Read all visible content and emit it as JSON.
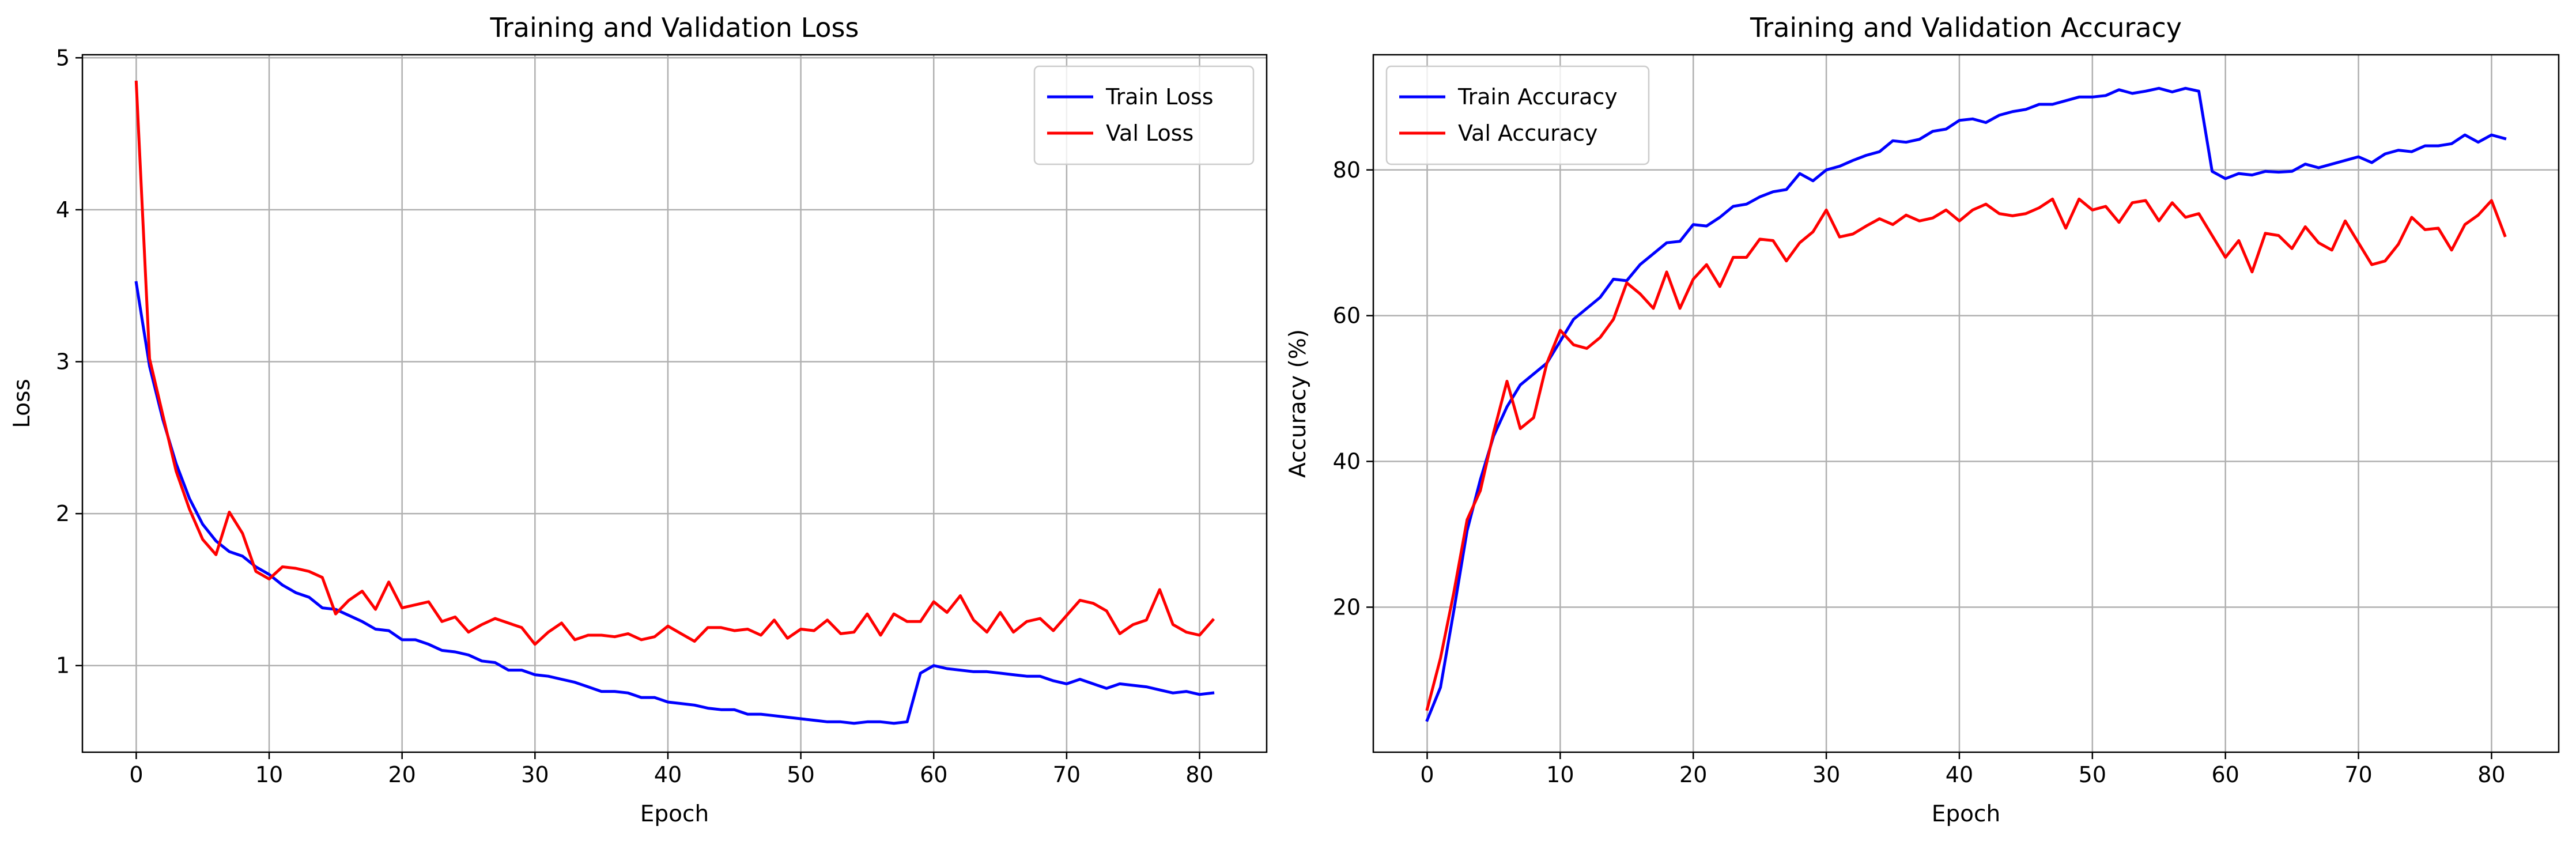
{
  "chart_data": [
    {
      "type": "line",
      "title": "Training and Validation Loss",
      "xlabel": "Epoch",
      "ylabel": "Loss",
      "xlim": [
        -4.05,
        85.05
      ],
      "ylim": [
        0.43,
        5.02
      ],
      "xticks": [
        0,
        10,
        20,
        30,
        40,
        50,
        60,
        70,
        80
      ],
      "yticks": [
        1,
        2,
        3,
        4,
        5
      ],
      "grid": true,
      "legend": "top-right",
      "series": [
        {
          "name": "Train Loss",
          "color": "#0000ff",
          "values": [
            3.52,
            2.97,
            2.62,
            2.33,
            2.1,
            1.93,
            1.82,
            1.75,
            1.72,
            1.65,
            1.6,
            1.53,
            1.48,
            1.45,
            1.38,
            1.37,
            1.33,
            1.29,
            1.24,
            1.23,
            1.17,
            1.17,
            1.14,
            1.1,
            1.09,
            1.07,
            1.03,
            1.02,
            0.97,
            0.97,
            0.94,
            0.93,
            0.91,
            0.89,
            0.86,
            0.83,
            0.83,
            0.82,
            0.79,
            0.79,
            0.76,
            0.75,
            0.74,
            0.72,
            0.71,
            0.71,
            0.68,
            0.68,
            0.67,
            0.66,
            0.65,
            0.64,
            0.63,
            0.63,
            0.62,
            0.63,
            0.63,
            0.62,
            0.63,
            0.95,
            1.0,
            0.98,
            0.97,
            0.96,
            0.96,
            0.95,
            0.94,
            0.93,
            0.93,
            0.9,
            0.88,
            0.91,
            0.88,
            0.85,
            0.88,
            0.87,
            0.86,
            0.84,
            0.82,
            0.83,
            0.81,
            0.82
          ]
        },
        {
          "name": "Val Loss",
          "color": "#ff0000",
          "values": [
            4.84,
            3.02,
            2.65,
            2.28,
            2.03,
            1.83,
            1.73,
            2.01,
            1.87,
            1.62,
            1.57,
            1.65,
            1.64,
            1.62,
            1.58,
            1.34,
            1.43,
            1.49,
            1.37,
            1.55,
            1.38,
            1.4,
            1.42,
            1.29,
            1.32,
            1.22,
            1.27,
            1.31,
            1.28,
            1.25,
            1.14,
            1.22,
            1.28,
            1.17,
            1.2,
            1.2,
            1.19,
            1.21,
            1.17,
            1.19,
            1.26,
            1.21,
            1.16,
            1.25,
            1.25,
            1.23,
            1.24,
            1.2,
            1.3,
            1.18,
            1.24,
            1.23,
            1.3,
            1.21,
            1.22,
            1.34,
            1.2,
            1.34,
            1.29,
            1.29,
            1.42,
            1.35,
            1.46,
            1.3,
            1.22,
            1.35,
            1.22,
            1.29,
            1.31,
            1.23,
            1.33,
            1.43,
            1.41,
            1.36,
            1.21,
            1.27,
            1.3,
            1.5,
            1.27,
            1.22,
            1.2,
            1.3
          ]
        }
      ]
    },
    {
      "type": "line",
      "title": "Training and Validation Accuracy",
      "xlabel": "Epoch",
      "ylabel": "Accuracy (%)",
      "xlim": [
        -4.05,
        85.05
      ],
      "ylim": [
        0.1,
        95.8
      ],
      "xticks": [
        0,
        10,
        20,
        30,
        40,
        50,
        60,
        70,
        80
      ],
      "yticks": [
        20,
        40,
        60,
        80
      ],
      "grid": true,
      "legend": "top-left",
      "series": [
        {
          "name": "Train Accuracy",
          "color": "#0000ff",
          "values": [
            4.5,
            9.0,
            19.5,
            30.5,
            37.5,
            43.5,
            47.5,
            50.5,
            52.0,
            53.5,
            56.5,
            59.5,
            61.0,
            62.5,
            65.0,
            64.8,
            67.0,
            68.5,
            70.0,
            70.2,
            72.5,
            72.3,
            73.5,
            75.0,
            75.3,
            76.3,
            77.0,
            77.3,
            79.5,
            78.5,
            80.0,
            80.5,
            81.3,
            82.0,
            82.5,
            84.0,
            83.8,
            84.2,
            85.3,
            85.6,
            86.8,
            87.0,
            86.5,
            87.5,
            88.0,
            88.3,
            89.0,
            89.0,
            89.5,
            90.0,
            90.0,
            90.2,
            91.0,
            90.5,
            90.8,
            91.2,
            90.7,
            91.2,
            90.8,
            79.8,
            78.8,
            79.5,
            79.3,
            79.8,
            79.7,
            79.8,
            80.8,
            80.3,
            80.8,
            81.3,
            81.8,
            81.0,
            82.2,
            82.7,
            82.5,
            83.3,
            83.3,
            83.6,
            84.8,
            83.8,
            84.8,
            84.3
          ]
        },
        {
          "name": "Val Accuracy",
          "color": "#ff0000",
          "values": [
            6.0,
            13.0,
            22.0,
            32.0,
            36.0,
            44.0,
            51.0,
            44.5,
            46.0,
            53.5,
            58.0,
            56.0,
            55.5,
            57.0,
            59.5,
            64.5,
            63.0,
            61.0,
            66.0,
            61.0,
            65.0,
            67.0,
            64.0,
            68.0,
            68.0,
            70.5,
            70.3,
            67.5,
            70.0,
            71.5,
            74.5,
            70.8,
            71.2,
            72.3,
            73.3,
            72.5,
            73.8,
            73.0,
            73.4,
            74.5,
            73.0,
            74.5,
            75.3,
            74.0,
            73.7,
            74.0,
            74.8,
            76.0,
            72.0,
            76.0,
            74.5,
            75.0,
            72.8,
            75.5,
            75.8,
            73.0,
            75.5,
            73.5,
            74.0,
            71.0,
            68.0,
            70.3,
            66.0,
            71.3,
            71.0,
            69.2,
            72.2,
            70.0,
            69.0,
            73.0,
            70.0,
            67.0,
            67.5,
            69.8,
            73.5,
            71.8,
            72.0,
            69.0,
            72.5,
            73.8,
            75.8,
            71.0
          ]
        }
      ]
    }
  ]
}
